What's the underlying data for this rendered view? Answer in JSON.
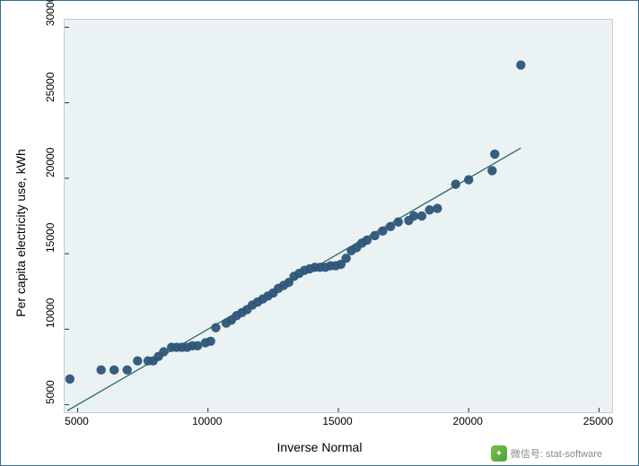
{
  "chart": {
    "type": "scatter",
    "background_color": "#eaf2f4",
    "frame_border_color": "#3a6a8a",
    "xlabel": "Inverse Normal",
    "ylabel": "Per capita electricity use, kWh",
    "label_fontsize": 14,
    "tick_fontsize": 12,
    "xlim": [
      4500,
      25500
    ],
    "ylim": [
      4500,
      30500
    ],
    "xticks": [
      5000,
      10000,
      15000,
      20000,
      25000
    ],
    "yticks": [
      5000,
      10000,
      15000,
      20000,
      25000,
      30000
    ],
    "marker_color": "#2d5578",
    "marker_radius": 5.2,
    "marker_opacity": 0.95,
    "line_color": "#2f6b5e",
    "line_width": 1.3,
    "fit_line": {
      "x1": 4600,
      "y1": 4600,
      "x2": 22000,
      "y2": 22000
    },
    "points": [
      [
        4700,
        6700
      ],
      [
        5900,
        7300
      ],
      [
        6400,
        7300
      ],
      [
        6900,
        7300
      ],
      [
        7300,
        7900
      ],
      [
        7700,
        7900
      ],
      [
        7900,
        7900
      ],
      [
        8100,
        8200
      ],
      [
        8300,
        8500
      ],
      [
        8600,
        8800
      ],
      [
        8800,
        8800
      ],
      [
        9000,
        8800
      ],
      [
        9200,
        8800
      ],
      [
        9400,
        8900
      ],
      [
        9600,
        8900
      ],
      [
        9900,
        9100
      ],
      [
        10100,
        9200
      ],
      [
        10300,
        10100
      ],
      [
        10700,
        10400
      ],
      [
        10900,
        10600
      ],
      [
        11100,
        10900
      ],
      [
        11300,
        11100
      ],
      [
        11500,
        11300
      ],
      [
        11700,
        11600
      ],
      [
        11900,
        11800
      ],
      [
        12100,
        12000
      ],
      [
        12300,
        12200
      ],
      [
        12500,
        12400
      ],
      [
        12700,
        12700
      ],
      [
        12900,
        12900
      ],
      [
        13100,
        13100
      ],
      [
        13300,
        13500
      ],
      [
        13500,
        13700
      ],
      [
        13700,
        13900
      ],
      [
        13900,
        14000
      ],
      [
        14100,
        14100
      ],
      [
        14300,
        14100
      ],
      [
        14500,
        14100
      ],
      [
        14700,
        14200
      ],
      [
        14900,
        14200
      ],
      [
        15100,
        14300
      ],
      [
        15300,
        14700
      ],
      [
        15500,
        15200
      ],
      [
        15700,
        15400
      ],
      [
        15900,
        15700
      ],
      [
        16100,
        15900
      ],
      [
        16400,
        16200
      ],
      [
        16700,
        16500
      ],
      [
        17000,
        16800
      ],
      [
        17300,
        17100
      ],
      [
        17700,
        17200
      ],
      [
        17900,
        17500
      ],
      [
        18200,
        17500
      ],
      [
        18500,
        17900
      ],
      [
        18800,
        18000
      ],
      [
        19500,
        19600
      ],
      [
        20000,
        19900
      ],
      [
        20900,
        20500
      ],
      [
        21000,
        21600
      ],
      [
        22000,
        27500
      ]
    ]
  },
  "watermark": {
    "text": "微信号: stat-software",
    "icon_name": "wechat-icon"
  }
}
